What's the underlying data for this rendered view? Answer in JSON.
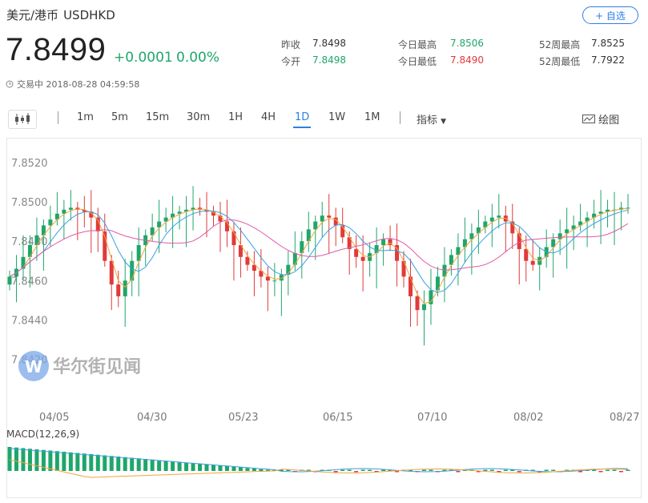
{
  "header": {
    "name": "美元/港币",
    "symbol": "USDHKD",
    "add_button": "+ 自选",
    "price": "7.8499",
    "change": "+0.0001",
    "change_pct": "0.00%",
    "status": "交易中 2018-08-28 04:59:58"
  },
  "stats": {
    "prev_close_label": "昨收",
    "prev_close": "7.8498",
    "open_label": "今开",
    "open": "7.8498",
    "day_high_label": "今日最高",
    "day_high": "7.8506",
    "day_low_label": "今日最低",
    "day_low": "7.8490",
    "wk52_high_label": "52周最高",
    "wk52_high": "7.8525",
    "wk52_low_label": "52周最低",
    "wk52_low": "7.7922"
  },
  "toolbar": {
    "intervals": [
      "1m",
      "5m",
      "15m",
      "30m",
      "1H",
      "4H",
      "1D",
      "1W",
      "1M"
    ],
    "active_interval": "1D",
    "indicator_label": "指标",
    "draw_label": "绘图"
  },
  "colors": {
    "up": "#1fa66a",
    "down": "#e03a3a",
    "accent": "#2f7fe3",
    "ma_fast": "#f2a43a",
    "ma_mid": "#3aa0e0",
    "ma_slow": "#e05aa6"
  },
  "watermark": "华尔街见闻",
  "chart_data": {
    "type": "candlestick",
    "y_ticks": [
      "7.8520",
      "7.8500",
      "7.8480",
      "7.8460",
      "7.8440",
      "7.8420"
    ],
    "y_tick_values": [
      7.852,
      7.85,
      7.848,
      7.846,
      7.844,
      7.842
    ],
    "x_ticks": [
      "04/05",
      "04/30",
      "05/23",
      "06/15",
      "07/10",
      "08/02",
      "08/27"
    ],
    "macd_label": "MACD(12,26,9)",
    "series": [
      {
        "name": "close",
        "values": [
          7.8462,
          7.8466,
          7.8472,
          7.8478,
          7.8483,
          7.8488,
          7.8491,
          7.8494,
          7.8496,
          7.8497,
          7.8496,
          7.8495,
          7.8492,
          7.8485,
          7.847,
          7.8458,
          7.8452,
          7.846,
          7.847,
          7.8478,
          7.8483,
          7.8487,
          7.849,
          7.8492,
          7.8494,
          7.8495,
          7.8496,
          7.8497,
          7.8496,
          7.8495,
          7.8493,
          7.849,
          7.8485,
          7.8478,
          7.8472,
          7.8468,
          7.8465,
          7.8462,
          7.846,
          7.846,
          7.8463,
          7.8468,
          7.8474,
          7.848,
          7.8486,
          7.849,
          7.8493,
          7.8492,
          7.8488,
          7.8482,
          7.8476,
          7.8472,
          7.847,
          7.8474,
          7.8478,
          7.8481,
          7.8478,
          7.847,
          7.8462,
          7.8452,
          7.8445,
          7.8448,
          7.8455,
          7.8462,
          7.8468,
          7.8473,
          7.8477,
          7.8481,
          7.8484,
          7.8487,
          7.849,
          7.8492,
          7.8493,
          7.849,
          7.8484,
          7.8476,
          7.847,
          7.8468,
          7.8472,
          7.8477,
          7.8481,
          7.8484,
          7.8486,
          7.8488,
          7.849,
          7.8492,
          7.8494,
          7.8495,
          7.8496,
          7.8496,
          7.8497,
          7.8497
        ]
      }
    ]
  }
}
